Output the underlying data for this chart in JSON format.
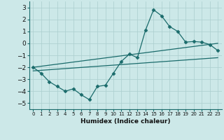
{
  "xlabel": "Humidex (Indice chaleur)",
  "xlim": [
    -0.5,
    23.5
  ],
  "ylim": [
    -5.5,
    3.5
  ],
  "xticks": [
    0,
    1,
    2,
    3,
    4,
    5,
    6,
    7,
    8,
    9,
    10,
    11,
    12,
    13,
    14,
    15,
    16,
    17,
    18,
    19,
    20,
    21,
    22,
    23
  ],
  "yticks": [
    -5,
    -4,
    -3,
    -2,
    -1,
    0,
    1,
    2,
    3
  ],
  "bg_color": "#cce8e8",
  "grid_color": "#aacece",
  "line_color": "#1a6b6b",
  "line1_x": [
    0,
    1,
    2,
    3,
    4,
    5,
    6,
    7,
    8,
    9,
    10,
    11,
    12,
    13,
    14,
    15,
    16,
    17,
    18,
    19,
    20,
    21,
    22,
    23
  ],
  "line1_y": [
    -2.0,
    -2.5,
    -3.2,
    -3.6,
    -4.0,
    -3.8,
    -4.3,
    -4.7,
    -3.6,
    -3.5,
    -2.5,
    -1.5,
    -0.9,
    -1.2,
    1.1,
    2.8,
    2.3,
    1.4,
    1.0,
    0.1,
    0.15,
    0.1,
    -0.1,
    -0.6
  ],
  "line2_x": [
    0,
    23
  ],
  "line2_y": [
    -2.0,
    0.0
  ],
  "line3_x": [
    0,
    23
  ],
  "line3_y": [
    -2.3,
    -1.2
  ],
  "marker": "D",
  "markersize": 2.5,
  "linewidth": 0.9
}
